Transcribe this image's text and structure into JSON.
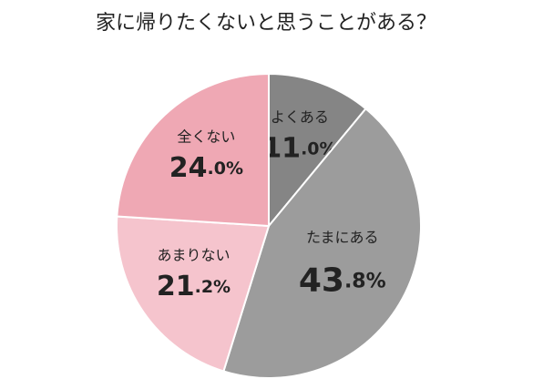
{
  "chart_data": {
    "type": "pie",
    "title": "家に帰りたくないと思うことがある？",
    "categories": [
      "よくある",
      "たまにある",
      "あまりない",
      "全くない"
    ],
    "values": [
      11,
      43.8,
      21.2,
      24
    ],
    "value_labels": [
      "11.0%",
      "43.8%",
      "21.2%",
      "24.0%"
    ],
    "colors": [
      "#858585",
      "#9c9c9c",
      "#f5c4cd",
      "#efa8b4"
    ]
  }
}
